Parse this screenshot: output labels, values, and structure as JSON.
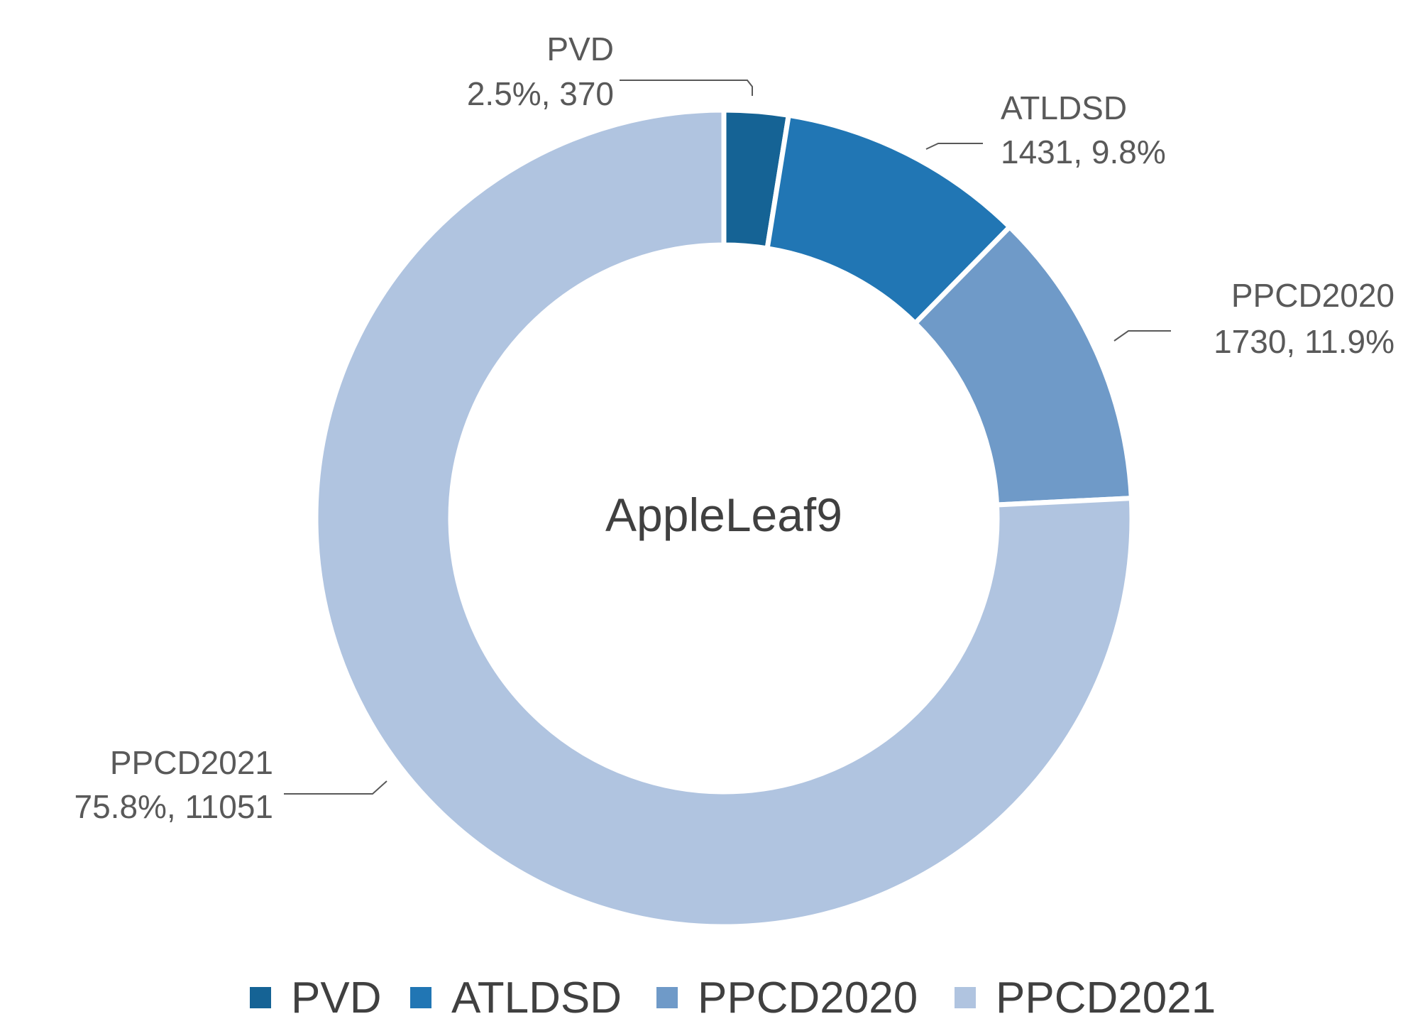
{
  "chart_data": {
    "type": "pie",
    "subtype": "donut",
    "center_label": "AppleLeaf9",
    "categories": [
      "PVD",
      "ATLDSD",
      "PPCD2020",
      "PPCD2021"
    ],
    "values": [
      370,
      1431,
      1730,
      11051
    ],
    "percentages": [
      "2.5%",
      "9.8%",
      "11.9%",
      "75.8%"
    ],
    "colors": [
      "#156395",
      "#2176b4",
      "#6f9ac8",
      "#b0c4e0"
    ],
    "data_labels": [
      {
        "name": "PVD",
        "detail": "2.5%, 370"
      },
      {
        "name": "ATLDSD",
        "detail": "1431, 9.8%"
      },
      {
        "name": "PPCD2020",
        "detail": "1730, 11.9%"
      },
      {
        "name": "PPCD2021",
        "detail": "75.8%, 11051"
      }
    ],
    "legend": {
      "position": "bottom",
      "entries": [
        "PVD",
        "ATLDSD",
        "PPCD2020",
        "PPCD2021"
      ]
    }
  }
}
